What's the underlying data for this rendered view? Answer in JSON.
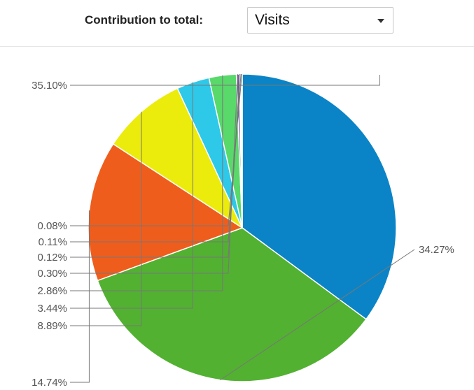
{
  "toolbar": {
    "label": "Contribution to total:",
    "select_value": "Visits"
  },
  "chart_data": {
    "type": "pie",
    "start_angle_deg": -90,
    "slices": [
      {
        "label": "35.10%",
        "value": 35.1,
        "color": "#0a84c6"
      },
      {
        "label": "34.27%",
        "value": 34.27,
        "color": "#52b131"
      },
      {
        "label": "14.74%",
        "value": 14.74,
        "color": "#ef5d1c"
      },
      {
        "label": "8.89%",
        "value": 8.89,
        "color": "#ebeb0c"
      },
      {
        "label": "3.44%",
        "value": 3.44,
        "color": "#2ec8e9"
      },
      {
        "label": "2.86%",
        "value": 2.86,
        "color": "#58d96a"
      },
      {
        "label": "0.30%",
        "value": 0.3,
        "color": "#6a4fa1"
      },
      {
        "label": "0.12%",
        "value": 0.12,
        "color": "#b83c8c"
      },
      {
        "label": "0.11%",
        "value": 0.11,
        "color": "#9a9a9a"
      },
      {
        "label": "0.08%",
        "value": 0.08,
        "color": "#c9c9c9"
      }
    ]
  }
}
